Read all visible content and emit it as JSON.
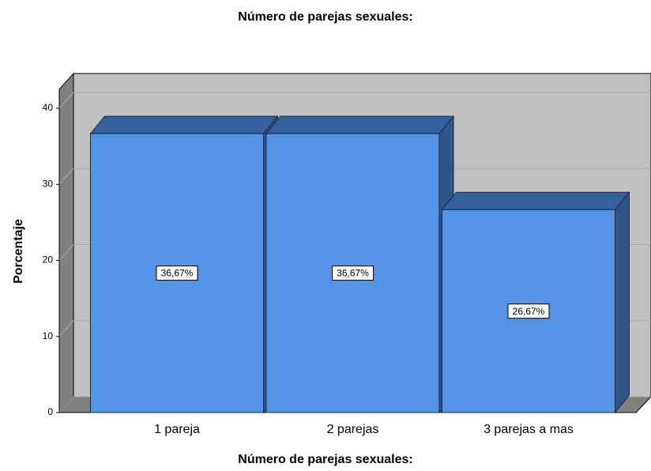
{
  "chart_data": {
    "type": "bar3d",
    "title": "Número de parejas sexuales:",
    "x_label": "Número de parejas sexuales:",
    "y_label": "Porcentaje",
    "categories": [
      "1 pareja",
      "2 parejas",
      "3 parejas a mas"
    ],
    "values": [
      36.67,
      36.67,
      26.67
    ],
    "value_labels": [
      "36,67%",
      "36,67%",
      "26,67%"
    ],
    "color": "#5394e4",
    "ylim": [
      0,
      42.5
    ],
    "yticks": [
      0,
      10,
      20,
      30,
      40
    ],
    "grid": true
  }
}
